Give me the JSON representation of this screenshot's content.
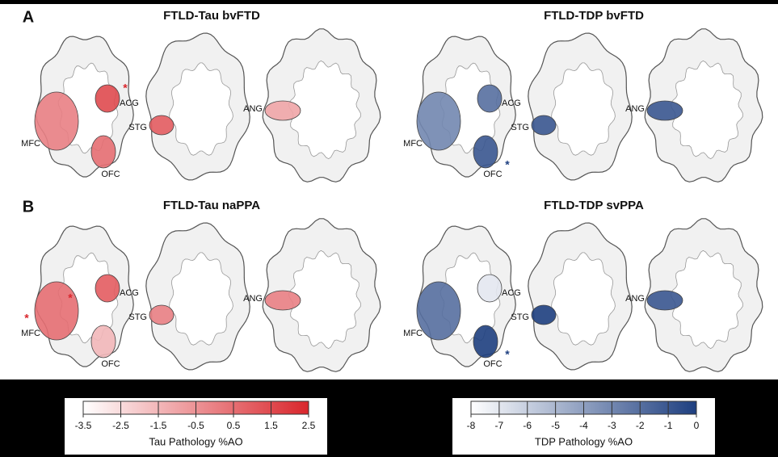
{
  "panels": [
    {
      "label": "A",
      "figures": [
        {
          "title": "FTLD-Tau bvFTD",
          "scale": 0,
          "regions": [
            {
              "name": "MFC",
              "value": 0
            },
            {
              "name": "ACG",
              "value": 1.5,
              "marks": [
                "*"
              ]
            },
            {
              "name": "OFC",
              "value": 0.5
            },
            {
              "name": "STG",
              "value": 1
            },
            {
              "name": "ANG",
              "value": -1
            }
          ]
        },
        {
          "title": "FTLD-TDP bvFTD",
          "scale": 1,
          "regions": [
            {
              "name": "MFC",
              "value": -3
            },
            {
              "name": "ACG",
              "value": -2
            },
            {
              "name": "OFC",
              "value": -1,
              "marks": [
                "*"
              ]
            },
            {
              "name": "STG",
              "value": -1
            },
            {
              "name": "ANG",
              "value": -1
            }
          ]
        }
      ]
    },
    {
      "label": "B",
      "figures": [
        {
          "title": "FTLD-Tau naPPA",
          "scale": 0,
          "regions": [
            {
              "name": "MFC",
              "value": 0.5,
              "marks": [
                "*",
                "*"
              ]
            },
            {
              "name": "ACG",
              "value": 1
            },
            {
              "name": "OFC",
              "value": -1.5
            },
            {
              "name": "STG",
              "value": 0
            },
            {
              "name": "ANG",
              "value": 0
            }
          ]
        },
        {
          "title": "FTLD-TDP svPPA",
          "scale": 1,
          "regions": [
            {
              "name": "MFC",
              "value": -2
            },
            {
              "name": "ACG",
              "value": -7
            },
            {
              "name": "OFC",
              "value": 0,
              "marks": [
                "*"
              ]
            },
            {
              "name": "STG",
              "value": 0
            },
            {
              "name": "ANG",
              "value": -1
            }
          ]
        }
      ]
    }
  ],
  "colorbars": [
    {
      "label": "Tau Pathology %AO",
      "lim": [
        -3.5,
        2.5
      ],
      "ticks": [
        -3.5,
        -2.5,
        -1.5,
        -0.5,
        0.5,
        1.5,
        2.5
      ],
      "color": "#d9262c"
    },
    {
      "label": "TDP Pathology %AO",
      "lim": [
        -8,
        0
      ],
      "ticks": [
        -8,
        -7,
        -6,
        -5,
        -4,
        -3,
        -2,
        -1,
        0
      ],
      "color": "#1e3f80"
    }
  ]
}
